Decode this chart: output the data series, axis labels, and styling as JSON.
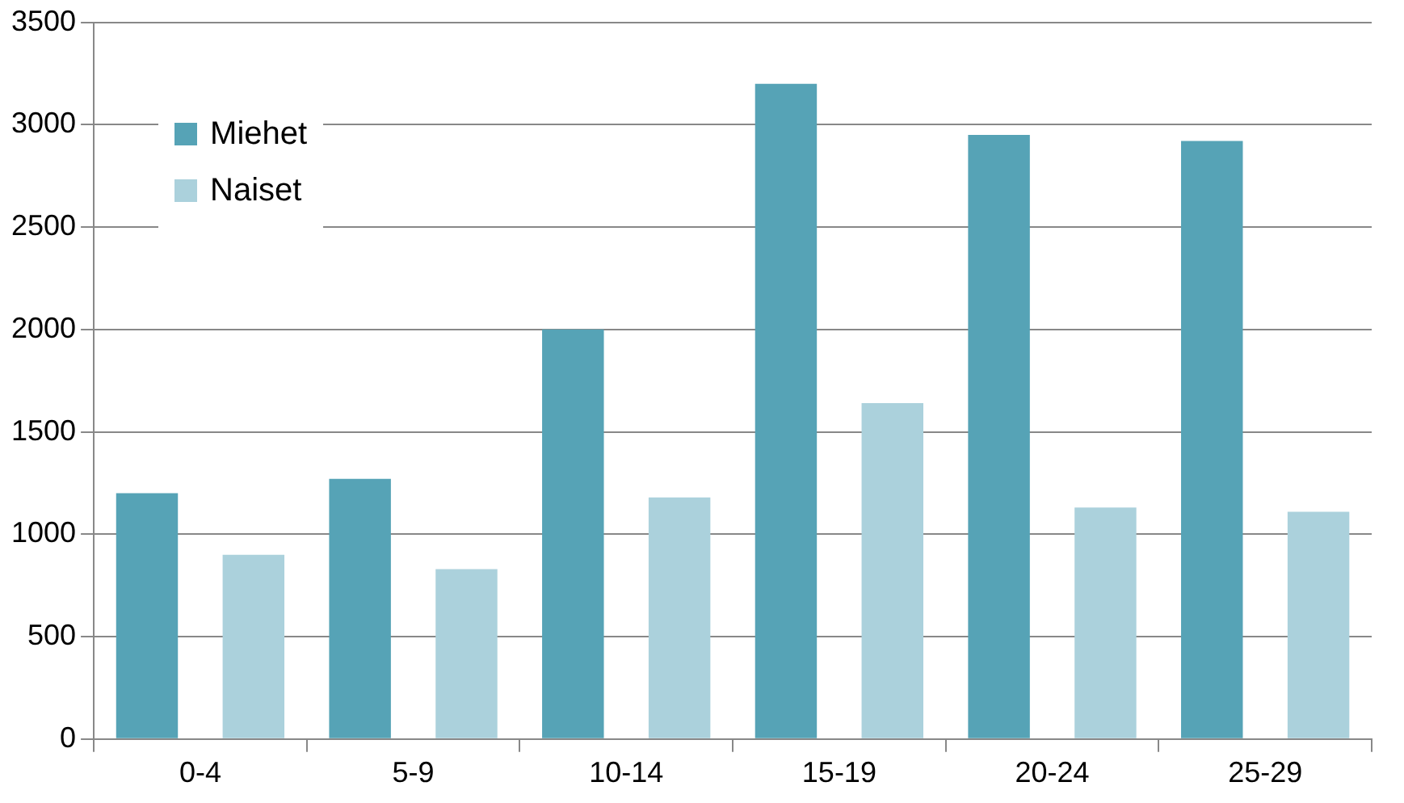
{
  "chart_data": {
    "type": "bar",
    "categories": [
      "0-4",
      "5-9",
      "10-14",
      "15-19",
      "20-24",
      "25-29"
    ],
    "series": [
      {
        "name": "Miehet",
        "color": "#56a3b6",
        "values": [
          1200,
          1270,
          2000,
          3200,
          2950,
          2920
        ]
      },
      {
        "name": "Naiset",
        "color": "#abd1dc",
        "values": [
          900,
          830,
          1180,
          1640,
          1130,
          1110
        ]
      }
    ],
    "ylim": [
      0,
      3500
    ],
    "yticks": [
      0,
      500,
      1000,
      1500,
      2000,
      2500,
      3000,
      3500
    ],
    "grid": "y",
    "legend": "top left"
  }
}
